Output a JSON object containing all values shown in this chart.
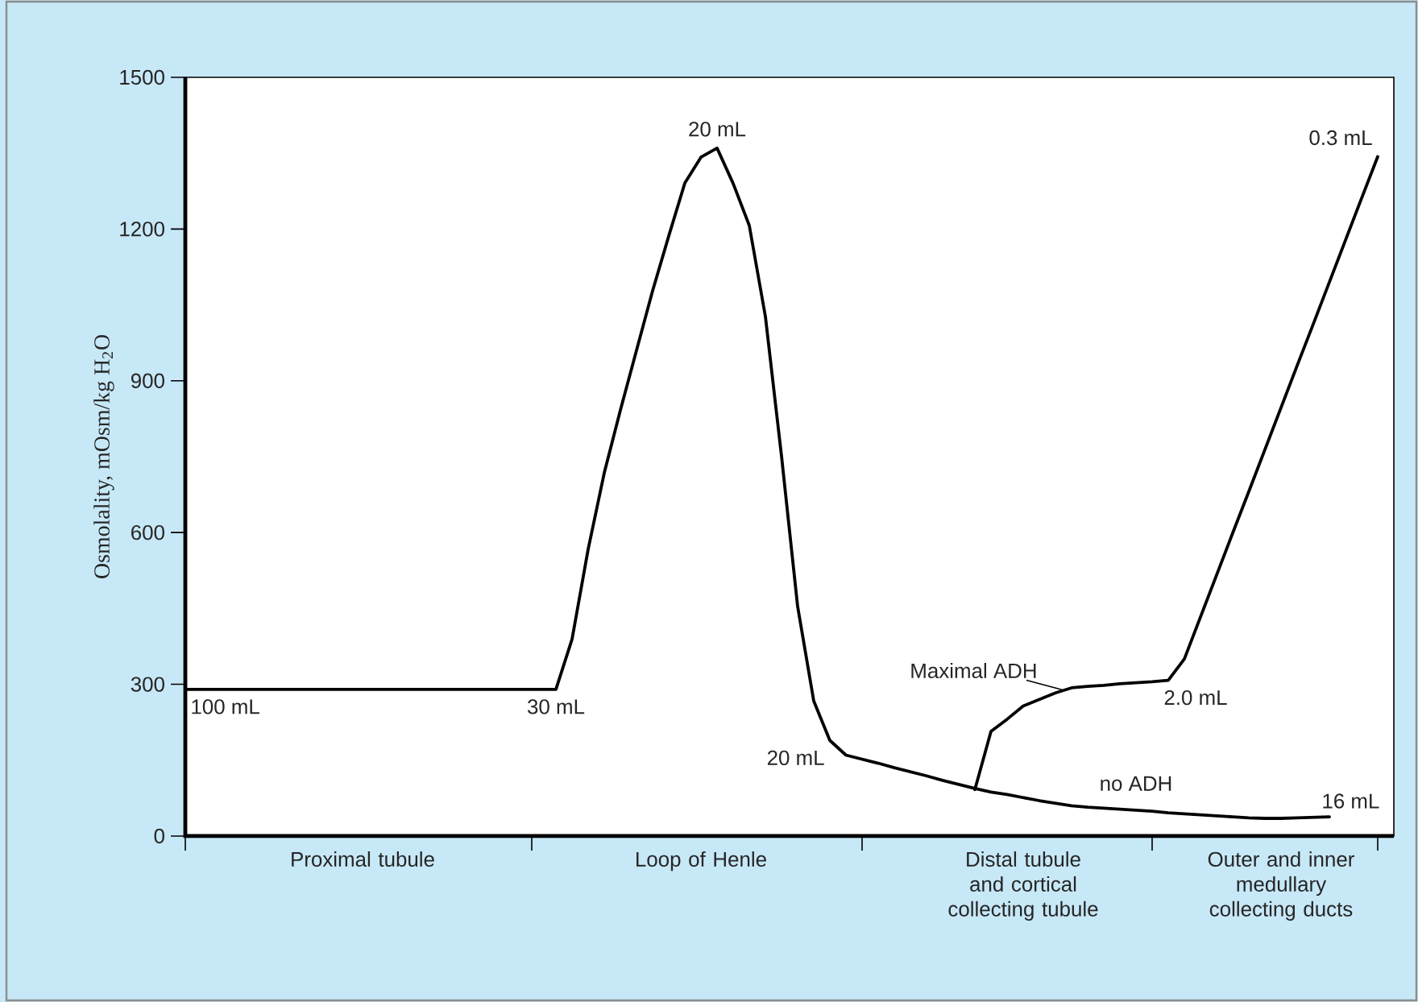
{
  "chart_data": {
    "type": "line",
    "ylabel": "Osmolality, mOsm/kg H$_{2}$O",
    "categories": [
      null,
      null,
      null,
      null,
      null,
      null,
      null,
      null,
      null,
      null,
      null,
      "Proximal tubule",
      null,
      null,
      null,
      null,
      null,
      null,
      null,
      null,
      null,
      null,
      null,
      null,
      null,
      null,
      null,
      null,
      null,
      null,
      null,
      null,
      "Loop of Henle",
      null,
      null,
      null,
      null,
      null,
      null,
      null,
      null,
      null,
      null,
      null,
      null,
      null,
      null,
      null,
      null,
      null,
      null,
      null,
      "Distal tubule and cortical collecting tubule",
      null,
      null,
      null,
      null,
      null,
      null,
      null,
      null,
      null,
      null,
      null,
      null,
      null,
      null,
      null,
      "Outer and inner medullary collecting ducts",
      null,
      null,
      null,
      null,
      null,
      null
    ],
    "ylim": [
      0,
      1500
    ],
    "yticks": [
      0,
      300,
      600,
      900,
      1200,
      1500
    ],
    "series": [
      {
        "name": "no ADH",
        "color": "#000000",
        "values": [
          290,
          290,
          290,
          290,
          290,
          290,
          290,
          290,
          290,
          290,
          290,
          290,
          290,
          290,
          290,
          290,
          290,
          290,
          290,
          290,
          290,
          290,
          290,
          290,
          389,
          567,
          718,
          842,
          960,
          1078,
          1186,
          1291,
          1342,
          1360,
          1290,
          1207,
          1027,
          751,
          454,
          267,
          189,
          160,
          152,
          144,
          135,
          127,
          119,
          110,
          102,
          94,
          87,
          82,
          76,
          70,
          65,
          60,
          57,
          55,
          53,
          51,
          49,
          46,
          44,
          42,
          40,
          38,
          36,
          35,
          35,
          36,
          37,
          38,
          null,
          null,
          null
        ]
      },
      {
        "name": "Maximal ADH",
        "color": "#000000",
        "values": [
          null,
          null,
          null,
          null,
          null,
          null,
          null,
          null,
          null,
          null,
          null,
          null,
          null,
          null,
          null,
          null,
          null,
          null,
          null,
          null,
          null,
          null,
          null,
          null,
          null,
          null,
          null,
          null,
          null,
          null,
          null,
          null,
          null,
          null,
          null,
          null,
          null,
          null,
          null,
          null,
          null,
          null,
          null,
          null,
          null,
          null,
          null,
          null,
          null,
          92,
          207,
          231,
          257,
          270,
          283,
          293,
          296,
          298,
          301,
          303,
          305,
          308,
          350,
          433,
          516,
          599,
          681,
          764,
          847,
          930,
          1012,
          1095,
          1178,
          1261,
          1343
        ]
      }
    ],
    "annotations": [
      "100 mL",
      "30 mL",
      "20 mL",
      "20 mL",
      "2.0 mL",
      "0.3 mL",
      "16 mL"
    ]
  }
}
